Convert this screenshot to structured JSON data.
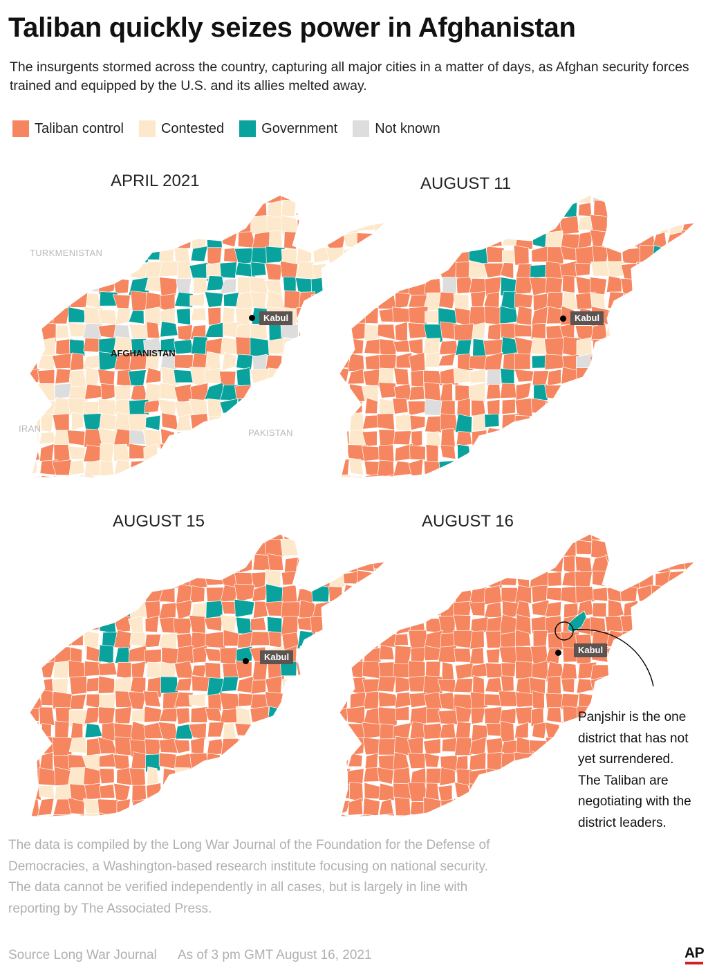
{
  "header": {
    "title": "Taliban quickly seizes power in Afghanistan",
    "subtitle": "The insurgents stormed across the country, capturing all major cities in a matter of days, as Afghan security forces trained and equipped by the U.S. and its allies melted away."
  },
  "legend": [
    {
      "label": "Taliban control",
      "color": "#f5865f"
    },
    {
      "label": "Contested",
      "color": "#fde8cb"
    },
    {
      "label": "Government",
      "color": "#0aa29d"
    },
    {
      "label": "Not known",
      "color": "#dddddd"
    }
  ],
  "maps": [
    {
      "label": "APRIL 2021",
      "taliban": 0.3,
      "contested": 0.42,
      "government": 0.25,
      "unknown": 0.03,
      "city": "Kabul"
    },
    {
      "label": "AUGUST 11",
      "taliban": 0.72,
      "contested": 0.13,
      "government": 0.13,
      "unknown": 0.02,
      "city": "Kabul"
    },
    {
      "label": "AUGUST 15",
      "taliban": 0.8,
      "contested": 0.1,
      "government": 0.1,
      "unknown": 0.0,
      "city": "Kabul"
    },
    {
      "label": "AUGUST 16",
      "taliban": 0.997,
      "contested": 0.0,
      "government": 0.003,
      "unknown": 0.0,
      "city": "Kabul"
    }
  ],
  "country_labels": {
    "turkmenistan": "TURKMENISTAN",
    "afghanistan": "AFGHANISTAN",
    "iran": "IRAN",
    "pakistan": "PAKISTAN"
  },
  "annotation": "Panjshir is the one district that has not yet surrendered. The Taliban are negotiating with the district leaders.",
  "note": "The data is  compiled by the Long War Journal of the Foundation for the Defense of Democracies, a Washington-based  research institute focusing on national security. The data cannot be verified independently in all cases, but is largely in line with reporting by The Associated Press.",
  "source": {
    "source_text": "Source  Long War Journal",
    "as_of": "As of 3 pm GMT August 16, 2021"
  },
  "logo": "AP"
}
